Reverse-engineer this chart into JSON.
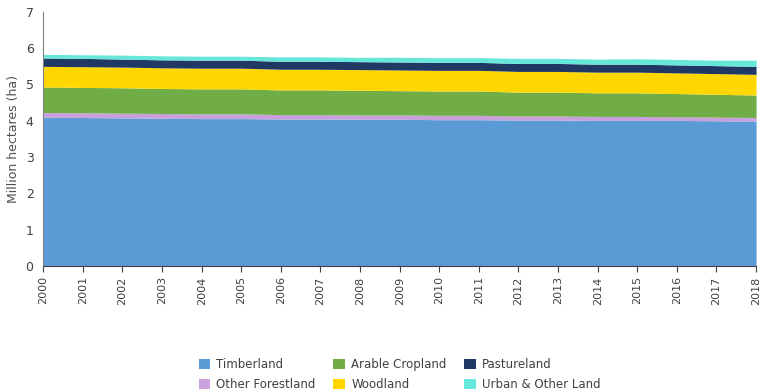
{
  "years": [
    2000,
    2001,
    2002,
    2003,
    2004,
    2005,
    2006,
    2007,
    2008,
    2009,
    2010,
    2011,
    2012,
    2013,
    2014,
    2015,
    2016,
    2017,
    2018
  ],
  "series": {
    "Timberland": [
      4.1,
      4.09,
      4.08,
      4.07,
      4.06,
      4.06,
      4.05,
      4.05,
      4.04,
      4.04,
      4.03,
      4.03,
      4.02,
      4.02,
      4.01,
      4.01,
      4.01,
      4.0,
      3.99
    ],
    "Other Forestland": [
      0.13,
      0.13,
      0.13,
      0.13,
      0.13,
      0.13,
      0.12,
      0.12,
      0.12,
      0.12,
      0.12,
      0.12,
      0.11,
      0.11,
      0.11,
      0.11,
      0.1,
      0.1,
      0.1
    ],
    "Arable Cropland": [
      0.7,
      0.7,
      0.7,
      0.69,
      0.69,
      0.69,
      0.68,
      0.68,
      0.68,
      0.67,
      0.67,
      0.67,
      0.66,
      0.66,
      0.65,
      0.65,
      0.64,
      0.63,
      0.62
    ],
    "Woodland": [
      0.57,
      0.57,
      0.57,
      0.57,
      0.57,
      0.57,
      0.57,
      0.57,
      0.57,
      0.57,
      0.57,
      0.57,
      0.57,
      0.57,
      0.57,
      0.57,
      0.57,
      0.57,
      0.57
    ],
    "Pastureland": [
      0.23,
      0.23,
      0.22,
      0.22,
      0.22,
      0.22,
      0.22,
      0.22,
      0.22,
      0.22,
      0.22,
      0.22,
      0.22,
      0.22,
      0.22,
      0.22,
      0.22,
      0.22,
      0.22
    ],
    "Urban & Other Land": [
      0.1,
      0.1,
      0.11,
      0.11,
      0.11,
      0.11,
      0.12,
      0.12,
      0.12,
      0.13,
      0.13,
      0.13,
      0.14,
      0.14,
      0.14,
      0.15,
      0.15,
      0.15,
      0.17
    ]
  },
  "colors": {
    "Timberland": "#5B9BD5",
    "Other Forestland": "#C9A0DC",
    "Arable Cropland": "#70AD47",
    "Woodland": "#FFD700",
    "Pastureland": "#1F3864",
    "Urban & Other Land": "#67E6DA"
  },
  "stack_order": [
    "Timberland",
    "Other Forestland",
    "Arable Cropland",
    "Woodland",
    "Pastureland",
    "Urban & Other Land"
  ],
  "legend_row1": [
    "Timberland",
    "Other Forestland",
    "Arable Cropland"
  ],
  "legend_row2": [
    "Woodland",
    "Pastureland",
    "Urban & Other Land"
  ],
  "ylabel": "Million hectares (ha)",
  "ylim": [
    0,
    7
  ],
  "yticks": [
    0,
    1,
    2,
    3,
    4,
    5,
    6,
    7
  ],
  "background_color": "#FFFFFF"
}
